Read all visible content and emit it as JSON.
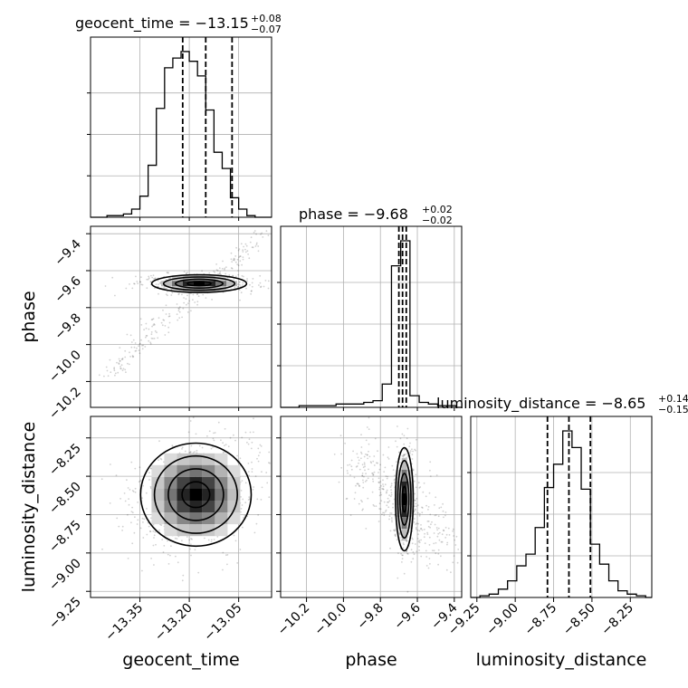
{
  "chart_data": {
    "type": "corner",
    "parameters": [
      "geocent_time",
      "phase",
      "luminosity_distance"
    ],
    "ranges": {
      "geocent_time": [
        -13.5,
        -12.95
      ],
      "phase": [
        -10.34,
        -9.36
      ],
      "luminosity_distance": [
        -9.29,
        -8.11
      ]
    },
    "ticks": {
      "geocent_time": [
        "-13.35",
        "-13.20",
        "-13.05"
      ],
      "phase": [
        "-10.2",
        "-10.0",
        "-9.8",
        "-9.6",
        "-9.4"
      ],
      "luminosity_distance": [
        "-9.25",
        "-9.00",
        "-8.75",
        "-8.50",
        "-8.25"
      ]
    },
    "titles": {
      "geocent_time": {
        "text": "geocent_time = −13.15",
        "plus": "+0.08",
        "minus": "−0.07"
      },
      "phase": {
        "text": "phase = −9.68",
        "plus": "+0.02",
        "minus": "−0.02"
      },
      "luminosity_distance": {
        "text": "luminosity_distance = −8.65",
        "plus": "+0.14",
        "minus": "−0.15"
      }
    },
    "quantiles": {
      "geocent_time": [
        -13.22,
        -13.15,
        -13.07
      ],
      "phase": [
        -9.7,
        -9.68,
        -9.66
      ],
      "luminosity_distance": [
        -8.79,
        -8.65,
        -8.51
      ]
    },
    "histograms": {
      "geocent_time": {
        "edges": [
          -13.5,
          -13.475,
          -13.45,
          -13.425,
          -13.4,
          -13.375,
          -13.35,
          -13.325,
          -13.3,
          -13.275,
          -13.25,
          -13.225,
          -13.2,
          -13.175,
          -13.15,
          -13.125,
          -13.1,
          -13.075,
          -13.05,
          -13.025,
          -13.0,
          -12.975,
          -12.95
        ],
        "counts": [
          0,
          0,
          1,
          1,
          2,
          5,
          13,
          32,
          67,
          92,
          98,
          102,
          96,
          87,
          66,
          40,
          30,
          12,
          5,
          1,
          0,
          0
        ]
      },
      "phase": {
        "edges": [
          -10.34,
          -10.29,
          -10.24,
          -10.19,
          -10.14,
          -10.09,
          -10.04,
          -9.99,
          -9.94,
          -9.89,
          -9.84,
          -9.79,
          -9.74,
          -9.69,
          -9.64,
          -9.59,
          -9.54,
          -9.49,
          -9.44,
          -9.39,
          -9.36
        ],
        "counts": [
          0,
          0,
          1,
          1,
          1,
          1,
          2,
          2,
          2,
          3,
          4,
          14,
          85,
          100,
          7,
          3,
          2,
          1,
          1,
          0
        ]
      },
      "luminosity_distance": {
        "edges": [
          -9.29,
          -9.23,
          -9.17,
          -9.11,
          -9.05,
          -8.99,
          -8.93,
          -8.87,
          -8.81,
          -8.75,
          -8.69,
          -8.63,
          -8.57,
          -8.51,
          -8.45,
          -8.39,
          -8.33,
          -8.27,
          -8.21,
          -8.15,
          -8.11
        ],
        "counts": [
          0,
          1,
          2,
          5,
          10,
          19,
          26,
          42,
          66,
          80,
          100,
          90,
          65,
          32,
          20,
          10,
          4,
          2,
          1,
          0
        ]
      }
    },
    "joint_centers": {
      "phase_vs_geocent_time": [
        -13.17,
        -9.67
      ],
      "luminosity_distance_vs_geocent_time": [
        -13.18,
        -8.62
      ],
      "luminosity_distance_vs_phase": [
        -9.67,
        -8.65
      ]
    },
    "grid": true
  }
}
